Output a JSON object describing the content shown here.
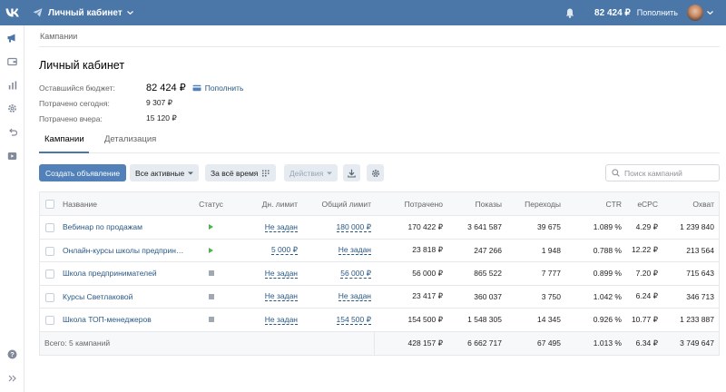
{
  "header": {
    "cabinet_title": "Личный кабинет",
    "balance": "82 424 ₽",
    "topup_label": "Пополнить"
  },
  "sidebar": {
    "icons": [
      "megaphone-icon",
      "wallet-icon",
      "stats-icon",
      "settings-icon",
      "history-icon",
      "video-icon",
      "help-icon",
      "expand-icon"
    ]
  },
  "breadcrumb": "Кампании",
  "page": {
    "title": "Личный кабинет",
    "budget_label": "Оставшийся бюджет:",
    "budget_value": "82 424 ₽",
    "topup_label": "Пополнить",
    "spent_today_label": "Потрачено сегодня:",
    "spent_today_value": "9 307 ₽",
    "spent_yesterday_label": "Потрачено вчера:",
    "spent_yesterday_value": "15 120 ₽"
  },
  "tabs": [
    {
      "label": "Кампании",
      "active": true
    },
    {
      "label": "Детализация",
      "active": false
    }
  ],
  "toolbar": {
    "create_label": "Создать объявление",
    "filter_label": "Все активные",
    "period_label": "За всё время",
    "actions_label": "Действия",
    "search_placeholder": "Поиск кампаний"
  },
  "table": {
    "headers": {
      "name": "Название",
      "status": "Статус",
      "day_limit": "Дн. лимит",
      "total_limit": "Общий лимит",
      "spent": "Потрачено",
      "shows": "Показы",
      "clicks": "Переходы",
      "ctr": "CTR",
      "ecpc": "eCPC",
      "reach": "Охват"
    },
    "rows": [
      {
        "name": "Вебинар по продажам",
        "status": "play",
        "day_limit": "Не задан",
        "total_limit": "180 000 ₽",
        "spent": "170 422 ₽",
        "shows": "3 641 587",
        "clicks": "39 675",
        "ctr": "1.089 %",
        "ecpc": "4.29 ₽",
        "reach": "1 239 840"
      },
      {
        "name": "Онлайн-курсы школы предприн…",
        "status": "play",
        "day_limit": "5 000 ₽",
        "total_limit": "Не задан",
        "spent": "23 818 ₽",
        "shows": "247 266",
        "clicks": "1 948",
        "ctr": "0.788 %",
        "ecpc": "12.22 ₽",
        "reach": "213 564"
      },
      {
        "name": "Школа предпринимателей",
        "status": "stop",
        "day_limit": "Не задан",
        "total_limit": "56 000 ₽",
        "spent": "56 000 ₽",
        "shows": "865 522",
        "clicks": "7 777",
        "ctr": "0.899 %",
        "ecpc": "7.20 ₽",
        "reach": "715 643"
      },
      {
        "name": "Курсы Светлаковой",
        "status": "stop",
        "day_limit": "Не задан",
        "total_limit": "Не задан",
        "spent": "23 417 ₽",
        "shows": "360 037",
        "clicks": "3 750",
        "ctr": "1.042 %",
        "ecpc": "6.24 ₽",
        "reach": "346 713"
      },
      {
        "name": "Школа ТОП-менеджеров",
        "status": "stop",
        "day_limit": "Не задан",
        "total_limit": "154 500 ₽",
        "spent": "154 500 ₽",
        "shows": "1 548 305",
        "clicks": "14 345",
        "ctr": "0.926 %",
        "ecpc": "10.77 ₽",
        "reach": "1 233 887"
      }
    ],
    "footer": {
      "total_label": "Всего: 5 кампаний",
      "spent": "428 157 ₽",
      "shows": "6 662 717",
      "clicks": "67 495",
      "ctr": "1.013 %",
      "ecpc": "6.34 ₽",
      "reach": "3 749 647"
    }
  }
}
